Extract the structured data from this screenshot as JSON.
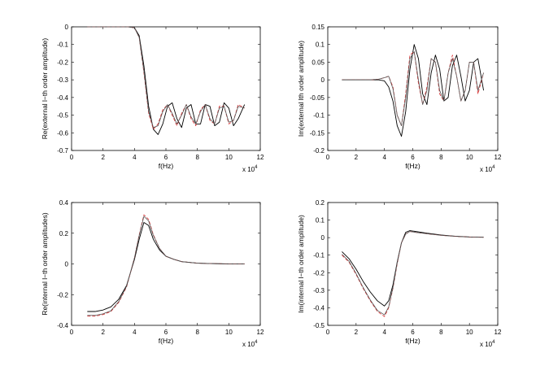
{
  "chart_data": [
    {
      "type": "line",
      "xlabel": "f(Hz)",
      "ylabel": "Re(external l−th order amplitude)",
      "x_exponent": "x 10",
      "x_exponent_power": "4",
      "xlim": [
        0,
        12
      ],
      "ylim": [
        -0.7,
        0
      ],
      "xticks": [
        "0",
        "2",
        "4",
        "6",
        "8",
        "10",
        "12"
      ],
      "yticks": [
        "-0.7",
        "-0.6",
        "-0.5",
        "-0.4",
        "-0.3",
        "-0.2",
        "-0.1",
        "0"
      ],
      "series": [
        {
          "color": "#000000",
          "dash": "solid",
          "x": [
            1,
            2,
            3,
            3.6,
            4.0,
            4.3,
            4.6,
            4.9,
            5.2,
            5.5,
            5.8,
            6.1,
            6.4,
            6.7,
            7.0,
            7.3,
            7.6,
            7.9,
            8.2,
            8.5,
            8.8,
            9.1,
            9.4,
            9.7,
            10.0,
            10.3,
            10.6,
            11.0
          ],
          "y": [
            0,
            0,
            0,
            0,
            -0.005,
            -0.05,
            -0.22,
            -0.45,
            -0.58,
            -0.61,
            -0.55,
            -0.45,
            -0.43,
            -0.52,
            -0.57,
            -0.46,
            -0.44,
            -0.55,
            -0.55,
            -0.44,
            -0.45,
            -0.56,
            -0.54,
            -0.43,
            -0.46,
            -0.56,
            -0.52,
            -0.44
          ]
        },
        {
          "color": "#d62728",
          "dash": "dashed",
          "x": [
            1,
            2,
            3,
            3.6,
            4.0,
            4.3,
            4.6,
            4.9,
            5.2,
            5.5,
            5.8,
            6.1,
            6.4,
            6.7,
            7.0,
            7.3,
            7.6,
            7.9,
            8.2,
            8.5,
            8.8,
            9.1,
            9.4,
            9.7,
            10.0,
            10.3,
            10.6,
            11.0
          ],
          "y": [
            0,
            0,
            0,
            0,
            -0.005,
            -0.06,
            -0.26,
            -0.49,
            -0.58,
            -0.55,
            -0.47,
            -0.44,
            -0.5,
            -0.56,
            -0.49,
            -0.44,
            -0.52,
            -0.56,
            -0.47,
            -0.44,
            -0.53,
            -0.55,
            -0.45,
            -0.45,
            -0.55,
            -0.53,
            -0.44,
            -0.46
          ]
        },
        {
          "color": "#555555",
          "dash": "solid",
          "x": [
            1,
            2,
            3,
            3.6,
            4.0,
            4.3,
            4.6,
            4.9,
            5.2,
            5.5,
            5.8,
            6.1,
            6.4,
            6.7,
            7.0,
            7.3,
            7.6,
            7.9,
            8.2,
            8.5,
            8.8,
            9.1,
            9.4,
            9.7,
            10.0,
            10.3,
            10.6,
            11.0
          ],
          "y": [
            0,
            0,
            0,
            0,
            -0.005,
            -0.06,
            -0.25,
            -0.48,
            -0.57,
            -0.56,
            -0.48,
            -0.44,
            -0.49,
            -0.55,
            -0.5,
            -0.44,
            -0.51,
            -0.55,
            -0.48,
            -0.44,
            -0.52,
            -0.55,
            -0.46,
            -0.45,
            -0.54,
            -0.53,
            -0.45,
            -0.46
          ]
        }
      ]
    },
    {
      "type": "line",
      "xlabel": "f(Hz)",
      "ylabel": "Im(external lth order amplitude)",
      "x_exponent": "x 10",
      "x_exponent_power": "4",
      "xlim": [
        0,
        12
      ],
      "ylim": [
        -0.2,
        0.15
      ],
      "xticks": [
        "0",
        "2",
        "4",
        "6",
        "8",
        "10",
        "12"
      ],
      "yticks": [
        "-0.2",
        "-0.15",
        "-0.1",
        "-0.05",
        "0",
        "0.05",
        "0.1",
        "0.15"
      ],
      "series": [
        {
          "color": "#000000",
          "dash": "solid",
          "x": [
            1,
            2,
            3,
            3.6,
            4.0,
            4.3,
            4.6,
            4.9,
            5.2,
            5.5,
            5.8,
            6.1,
            6.4,
            6.7,
            7.0,
            7.3,
            7.6,
            7.9,
            8.2,
            8.5,
            8.8,
            9.1,
            9.4,
            9.7,
            10.0,
            10.3,
            10.6,
            11.0
          ],
          "y": [
            0,
            0,
            0,
            0,
            -0.003,
            -0.02,
            -0.06,
            -0.13,
            -0.16,
            -0.09,
            0.03,
            0.1,
            0.06,
            -0.04,
            -0.07,
            0.02,
            0.07,
            0.03,
            -0.06,
            -0.05,
            0.04,
            0.07,
            0.01,
            -0.06,
            -0.03,
            0.05,
            0.06,
            -0.03
          ]
        },
        {
          "color": "#d62728",
          "dash": "dashed",
          "x": [
            1,
            2,
            3,
            3.6,
            4.0,
            4.3,
            4.6,
            4.9,
            5.2,
            5.5,
            5.8,
            6.1,
            6.4,
            6.7,
            7.0,
            7.3,
            7.6,
            7.9,
            8.2,
            8.5,
            8.8,
            9.1,
            9.4,
            9.7,
            10.0,
            10.3,
            10.6,
            11.0
          ],
          "y": [
            0,
            0,
            0,
            0.002,
            0.006,
            0.01,
            -0.02,
            -0.1,
            -0.13,
            -0.04,
            0.07,
            0.08,
            -0.01,
            -0.07,
            -0.02,
            0.06,
            0.05,
            -0.04,
            -0.06,
            0.02,
            0.07,
            0.01,
            -0.06,
            -0.03,
            0.05,
            0.05,
            -0.04,
            0.02
          ]
        },
        {
          "color": "#555555",
          "dash": "solid",
          "x": [
            1,
            2,
            3,
            3.6,
            4.0,
            4.3,
            4.6,
            4.9,
            5.2,
            5.5,
            5.8,
            6.1,
            6.4,
            6.7,
            7.0,
            7.3,
            7.6,
            7.9,
            8.2,
            8.5,
            8.8,
            9.1,
            9.4,
            9.7,
            10.0,
            10.3,
            10.6,
            11.0
          ],
          "y": [
            0,
            0,
            0,
            0.002,
            0.006,
            0.01,
            -0.025,
            -0.1,
            -0.13,
            -0.05,
            0.06,
            0.08,
            0,
            -0.07,
            -0.03,
            0.06,
            0.05,
            -0.03,
            -0.06,
            0.02,
            0.06,
            0.01,
            -0.06,
            -0.03,
            0.05,
            0.05,
            -0.03,
            0.02
          ]
        }
      ]
    },
    {
      "type": "line",
      "xlabel": "f(Hz)",
      "ylabel": "Re(internal l−th order amplitudes)",
      "x_exponent": "x 10",
      "x_exponent_power": "4",
      "xlim": [
        0,
        12
      ],
      "ylim": [
        -0.4,
        0.4
      ],
      "xticks": [
        "0",
        "2",
        "4",
        "6",
        "8",
        "10",
        "12"
      ],
      "yticks": [
        "-0.4",
        "-0.2",
        "0",
        "0.2",
        "0.4"
      ],
      "series": [
        {
          "color": "#000000",
          "dash": "solid",
          "x": [
            1,
            1.5,
            2,
            2.5,
            3,
            3.5,
            4,
            4.3,
            4.6,
            4.9,
            5.2,
            5.6,
            6,
            6.5,
            7,
            8,
            9,
            10,
            11
          ],
          "y": [
            -0.31,
            -0.31,
            -0.3,
            -0.28,
            -0.23,
            -0.14,
            0.03,
            0.16,
            0.27,
            0.25,
            0.16,
            0.09,
            0.05,
            0.03,
            0.015,
            0.005,
            0.002,
            0,
            0
          ]
        },
        {
          "color": "#d62728",
          "dash": "dashed",
          "x": [
            1,
            1.5,
            2,
            2.5,
            3,
            3.5,
            4,
            4.3,
            4.6,
            4.9,
            5.2,
            5.6,
            6,
            6.5,
            7,
            8,
            9,
            10,
            11
          ],
          "y": [
            -0.34,
            -0.34,
            -0.33,
            -0.31,
            -0.25,
            -0.15,
            0.04,
            0.19,
            0.32,
            0.29,
            0.19,
            0.1,
            0.05,
            0.03,
            0.015,
            0.005,
            0.002,
            0,
            0
          ]
        },
        {
          "color": "#555555",
          "dash": "solid",
          "x": [
            1,
            1.5,
            2,
            2.5,
            3,
            3.5,
            4,
            4.3,
            4.6,
            4.9,
            5.2,
            5.6,
            6,
            6.5,
            7,
            8,
            9,
            10,
            11
          ],
          "y": [
            -0.335,
            -0.335,
            -0.325,
            -0.305,
            -0.245,
            -0.145,
            0.04,
            0.185,
            0.31,
            0.28,
            0.185,
            0.1,
            0.05,
            0.03,
            0.015,
            0.005,
            0.002,
            0,
            0
          ]
        }
      ]
    },
    {
      "type": "line",
      "xlabel": "f(Hz)",
      "ylabel": "Im(internal l−th order amplitude)",
      "x_exponent": "x 10",
      "x_exponent_power": "4",
      "xlim": [
        0,
        12
      ],
      "ylim": [
        -0.5,
        0.2
      ],
      "xticks": [
        "0",
        "2",
        "4",
        "6",
        "8",
        "10",
        "12"
      ],
      "yticks": [
        "-0.5",
        "-0.4",
        "-0.3",
        "-0.2",
        "-0.1",
        "0",
        "0.1",
        "0.2"
      ],
      "series": [
        {
          "color": "#000000",
          "dash": "solid",
          "x": [
            1,
            1.5,
            2,
            2.5,
            3,
            3.5,
            4,
            4.3,
            4.6,
            4.9,
            5.2,
            5.5,
            5.8,
            6.2,
            7,
            8,
            9,
            10,
            11
          ],
          "y": [
            -0.08,
            -0.12,
            -0.18,
            -0.25,
            -0.31,
            -0.36,
            -0.39,
            -0.36,
            -0.27,
            -0.14,
            -0.03,
            0.03,
            0.04,
            0.035,
            0.025,
            0.015,
            0.008,
            0.004,
            0.002
          ]
        },
        {
          "color": "#d62728",
          "dash": "dashed",
          "x": [
            1,
            1.5,
            2,
            2.5,
            3,
            3.5,
            4,
            4.3,
            4.6,
            4.9,
            5.2,
            5.5,
            5.8,
            6.2,
            7,
            8,
            9,
            10,
            11
          ],
          "y": [
            -0.1,
            -0.14,
            -0.21,
            -0.29,
            -0.36,
            -0.42,
            -0.45,
            -0.4,
            -0.29,
            -0.15,
            -0.03,
            0.02,
            0.035,
            0.03,
            0.022,
            0.013,
            0.007,
            0.003,
            0.002
          ]
        },
        {
          "color": "#555555",
          "dash": "solid",
          "x": [
            1,
            1.5,
            2,
            2.5,
            3,
            3.5,
            4,
            4.3,
            4.6,
            4.9,
            5.2,
            5.5,
            5.8,
            6.2,
            7,
            8,
            9,
            10,
            11
          ],
          "y": [
            -0.095,
            -0.135,
            -0.205,
            -0.285,
            -0.355,
            -0.415,
            -0.44,
            -0.395,
            -0.285,
            -0.145,
            -0.03,
            0.02,
            0.035,
            0.03,
            0.022,
            0.013,
            0.007,
            0.003,
            0.002
          ]
        }
      ]
    }
  ]
}
